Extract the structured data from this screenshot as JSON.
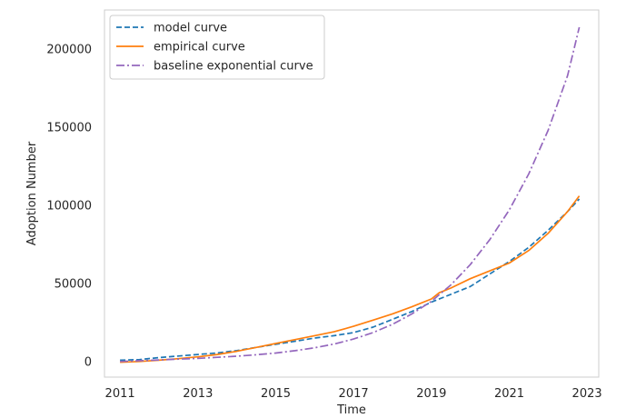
{
  "chart_data": {
    "type": "line",
    "xlabel": "Time",
    "ylabel": "Adoption Number",
    "xlim": [
      2010.6,
      2023.3
    ],
    "ylim": [
      -10000,
      225000
    ],
    "xticks": [
      2011,
      2013,
      2015,
      2017,
      2019,
      2021,
      2023
    ],
    "yticks": [
      0,
      50000,
      100000,
      150000,
      200000
    ],
    "grid": false,
    "legend_position": "top-left",
    "series": [
      {
        "name": "model curve",
        "color": "#1f77b4",
        "dash": "dashed",
        "x": [
          2011.0,
          2011.5,
          2012.0,
          2012.5,
          2013.0,
          2013.5,
          2014.0,
          2014.5,
          2015.0,
          2015.5,
          2016.0,
          2016.5,
          2017.0,
          2017.5,
          2018.0,
          2018.5,
          2019.0,
          2019.5,
          2020.0,
          2020.5,
          2021.0,
          2021.5,
          2022.0,
          2022.5,
          2022.8
        ],
        "y": [
          800,
          1200,
          2500,
          3500,
          4500,
          5500,
          7000,
          9000,
          11000,
          13000,
          15000,
          16500,
          18500,
          22000,
          27000,
          32000,
          38000,
          43000,
          48000,
          56000,
          64000,
          73000,
          84000,
          96000,
          104000
        ]
      },
      {
        "name": "empirical curve",
        "color": "#ff7f0e",
        "dash": "solid",
        "x": [
          2011.0,
          2011.5,
          2012.0,
          2012.5,
          2013.0,
          2013.5,
          2014.0,
          2014.5,
          2015.0,
          2015.5,
          2016.0,
          2016.5,
          2017.0,
          2017.5,
          2018.0,
          2018.5,
          2019.0,
          2019.2,
          2019.5,
          2020.0,
          2020.5,
          2021.0,
          2021.5,
          2022.0,
          2022.5,
          2022.8
        ],
        "y": [
          -500,
          0,
          800,
          1800,
          3000,
          4500,
          6500,
          9000,
          11500,
          14000,
          16500,
          19000,
          22500,
          26500,
          30500,
          35000,
          40000,
          44000,
          47000,
          53000,
          58000,
          63000,
          71000,
          82000,
          96000,
          106000
        ]
      },
      {
        "name": "baseline exponential curve",
        "color": "#9467bd",
        "dash": "dashdot",
        "x": [
          2011.0,
          2011.5,
          2012.0,
          2012.5,
          2013.0,
          2013.5,
          2014.0,
          2014.5,
          2015.0,
          2015.5,
          2016.0,
          2016.5,
          2017.0,
          2017.5,
          2018.0,
          2018.5,
          2019.0,
          2019.5,
          2020.0,
          2020.5,
          2021.0,
          2021.5,
          2022.0,
          2022.5,
          2022.8
        ],
        "y": [
          0,
          500,
          1000,
          1500,
          2000,
          2700,
          3400,
          4300,
          5400,
          6900,
          8800,
          11200,
          14400,
          18500,
          23800,
          30500,
          38500,
          49000,
          62000,
          78000,
          97000,
          120000,
          148000,
          183000,
          214000
        ]
      }
    ]
  }
}
